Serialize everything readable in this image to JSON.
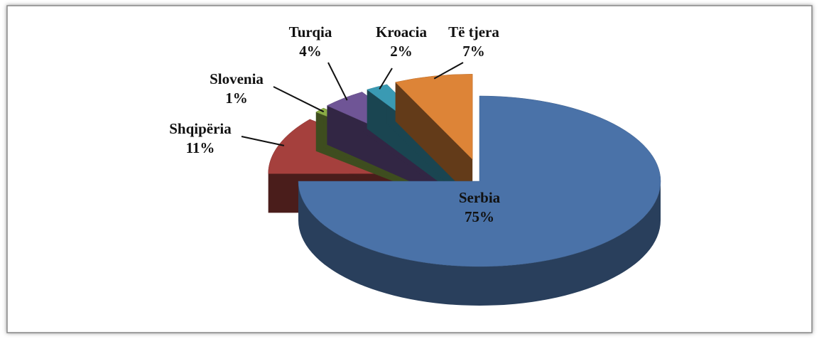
{
  "chart_data": {
    "type": "pie3d",
    "categories": [
      "Serbia",
      "Shqipëria",
      "Slovenia",
      "Turqia",
      "Kroacia",
      "Të tjera"
    ],
    "values": [
      75,
      11,
      1,
      4,
      2,
      7
    ],
    "value_labels": [
      "75%",
      "11%",
      "1%",
      "4%",
      "2%",
      "7%"
    ],
    "colors": [
      "#4a72a8",
      "#a5403d",
      "#8aab45",
      "#6f5596",
      "#3a9ab3",
      "#dd8437"
    ]
  }
}
